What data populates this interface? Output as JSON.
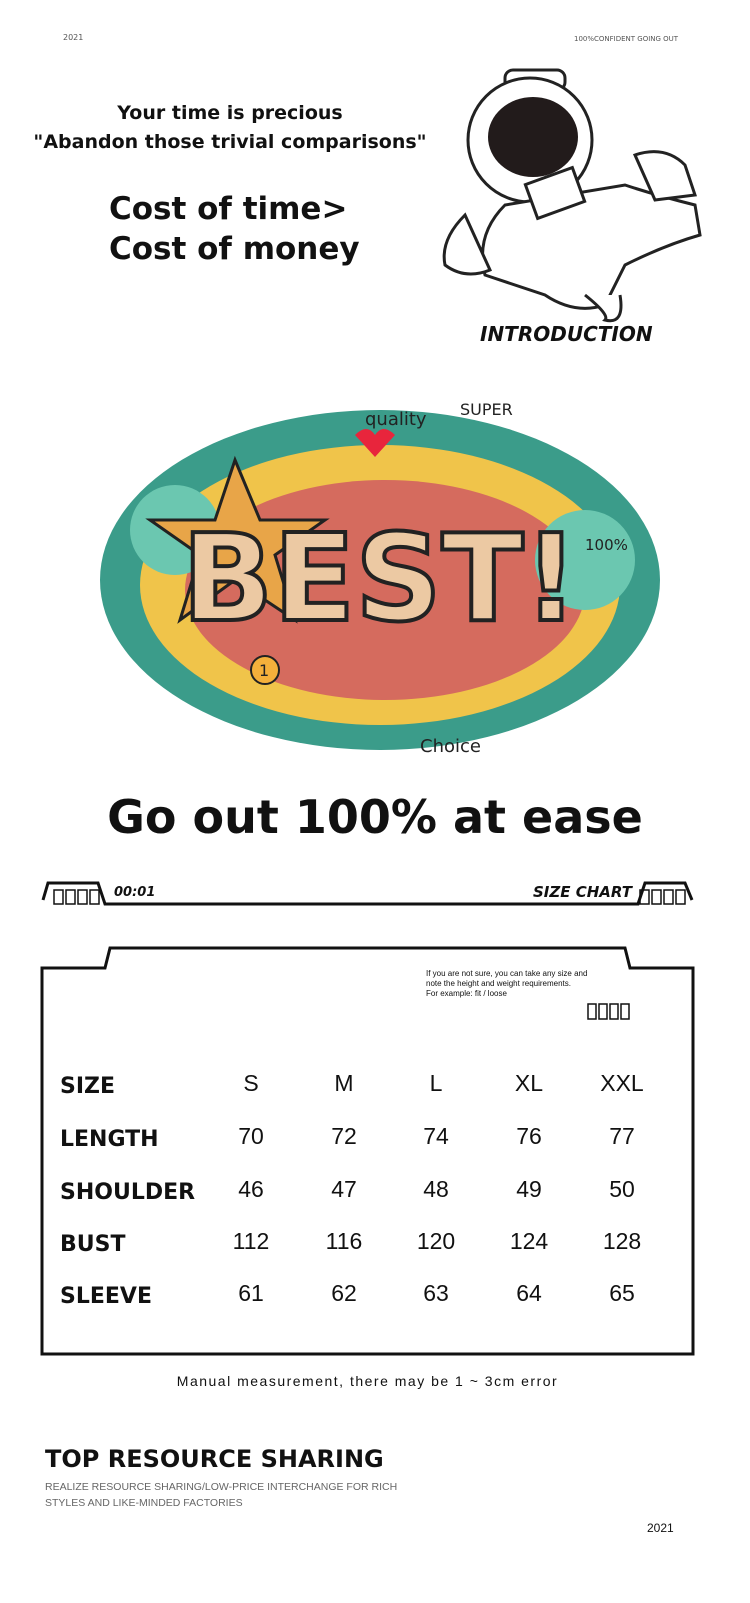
{
  "header": {
    "year": "2021",
    "tagline": "100%CONFIDENT GOING OUT"
  },
  "intro": {
    "line1": "Your time is precious",
    "line2": "\"Abandon those trivial comparisons\"",
    "cost1": "Cost of time>",
    "cost2": "Cost of money",
    "label": "INTRODUCTION"
  },
  "doodle": {
    "main": "BEST!",
    "words": [
      "quality",
      "SUPER",
      "100%",
      "Choice",
      "1"
    ]
  },
  "slogan": "Go out 100% at ease",
  "size_chart": {
    "time": "00:01",
    "title": "SIZE CHART",
    "note": [
      "If you are not sure, you can take any size and",
      "note the height and weight requirements.",
      "For example: fit / loose"
    ],
    "rows": [
      {
        "label": "SIZE",
        "values": [
          "S",
          "M",
          "L",
          "XL",
          "XXL"
        ]
      },
      {
        "label": "LENGTH",
        "values": [
          "70",
          "72",
          "74",
          "76",
          "77"
        ]
      },
      {
        "label": "SHOULDER",
        "values": [
          "46",
          "47",
          "48",
          "49",
          "50"
        ]
      },
      {
        "label": "BUST",
        "values": [
          "112",
          "116",
          "120",
          "124",
          "128"
        ]
      },
      {
        "label": "SLEEVE",
        "values": [
          "61",
          "62",
          "63",
          "64",
          "65"
        ]
      }
    ],
    "footnote": "Manual measurement, there may be 1 ~ 3cm error"
  },
  "footer": {
    "title": "TOP RESOURCE SHARING",
    "sub1": "REALIZE RESOURCE SHARING/LOW-PRICE INTERCHANGE FOR RICH",
    "sub2": "STYLES AND LIKE-MINDED FACTORIES",
    "year": "2021"
  }
}
